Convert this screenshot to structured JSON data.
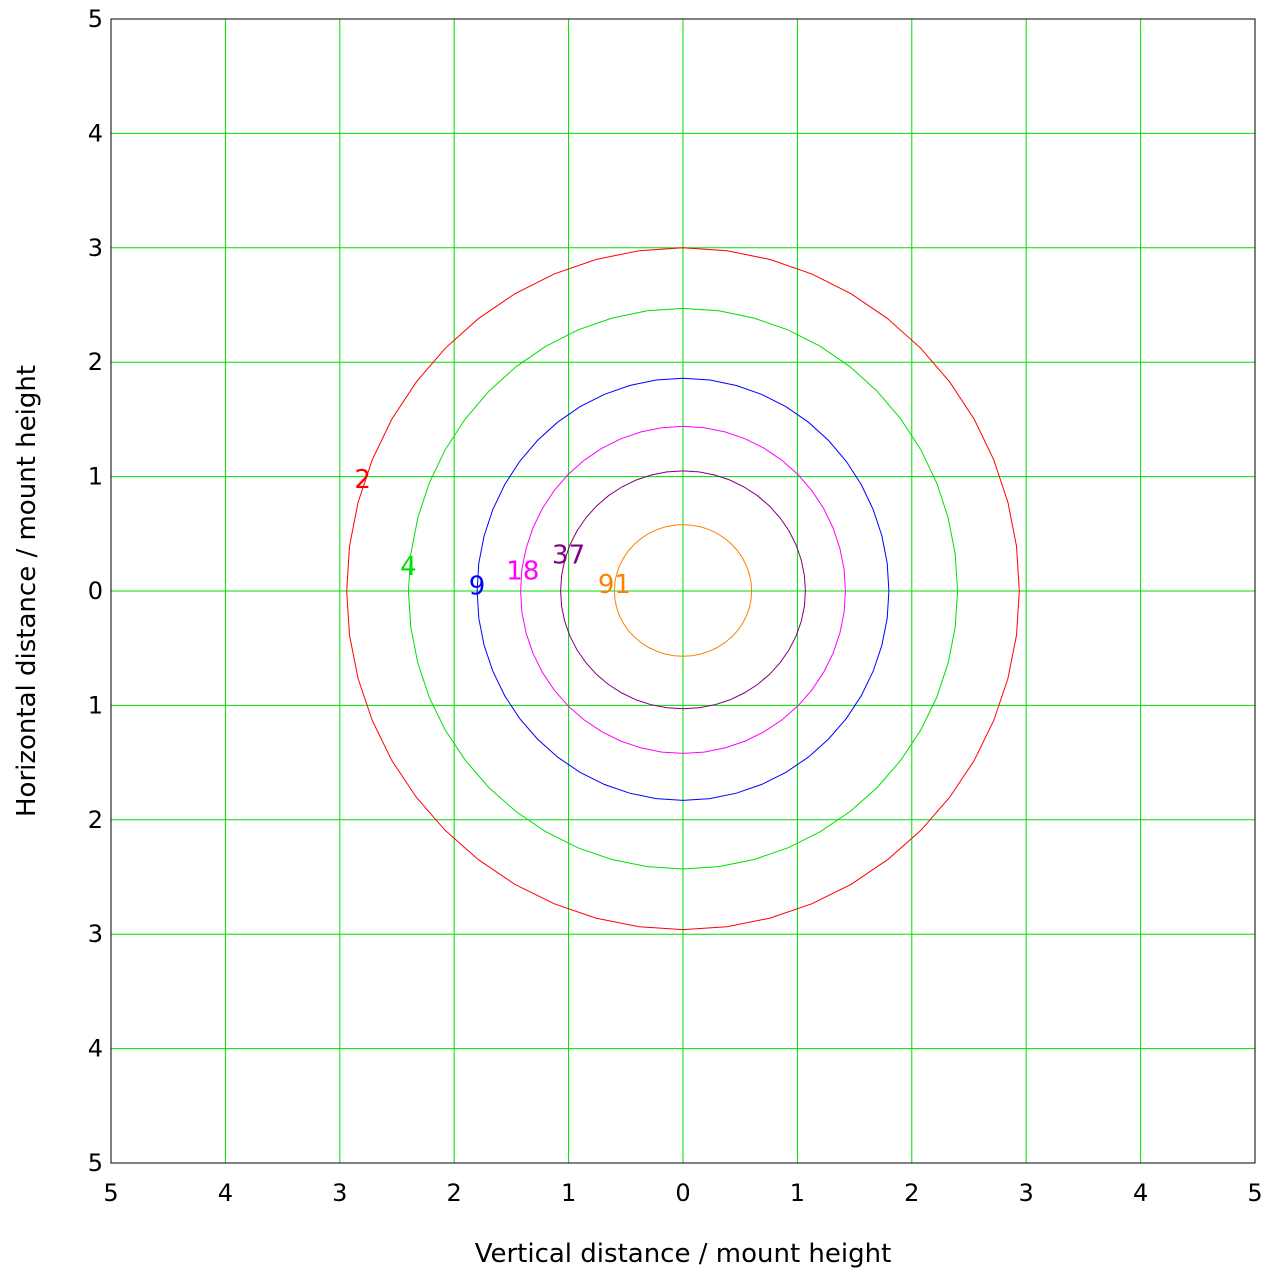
{
  "chart_data": {
    "type": "contour",
    "xlabel": "Vertical distance / mount height",
    "ylabel": "Horizontal distance / mount height",
    "xlim": [
      -5,
      5
    ],
    "ylim": [
      -5,
      5
    ],
    "x_ticks": [
      -5,
      -4,
      -3,
      -2,
      -1,
      0,
      1,
      2,
      3,
      4,
      5
    ],
    "y_ticks": [
      -5,
      -4,
      -3,
      -2,
      -1,
      0,
      1,
      2,
      3,
      4,
      5
    ],
    "x_tick_labels": [
      "5",
      "4",
      "3",
      "2",
      "1",
      "0",
      "1",
      "2",
      "3",
      "4",
      "5"
    ],
    "y_tick_labels": [
      "5",
      "4",
      "3",
      "2",
      "1",
      "0",
      "1",
      "2",
      "3",
      "4",
      "5"
    ],
    "grid": true,
    "grid_color": "#00dd00",
    "contours": [
      {
        "label": "2",
        "color": "#ff0000",
        "rx": 2.94,
        "ry_top": 3.0,
        "ry_bottom": 2.96,
        "label_at": [
          -2.8,
          0.98
        ]
      },
      {
        "label": "4",
        "color": "#00e000",
        "rx": 2.4,
        "ry_top": 2.47,
        "ry_bottom": 2.43,
        "label_at": [
          -2.4,
          0.22
        ]
      },
      {
        "label": "9",
        "color": "#0000ff",
        "rx": 1.8,
        "ry_top": 1.86,
        "ry_bottom": 1.83,
        "label_at": [
          -1.8,
          0.05
        ]
      },
      {
        "label": "18",
        "color": "#ff00ff",
        "rx": 1.42,
        "ry_top": 1.44,
        "ry_bottom": 1.42,
        "label_at": [
          -1.4,
          0.18
        ]
      },
      {
        "label": "37",
        "color": "#800080",
        "rx": 1.07,
        "ry_top": 1.05,
        "ry_bottom": 1.03,
        "label_at": [
          -1.0,
          0.32
        ]
      },
      {
        "label": "91",
        "color": "#ff8000",
        "rx": 0.6,
        "ry_top": 0.58,
        "ry_bottom": 0.57,
        "label_at": [
          -0.6,
          0.06
        ]
      }
    ]
  }
}
